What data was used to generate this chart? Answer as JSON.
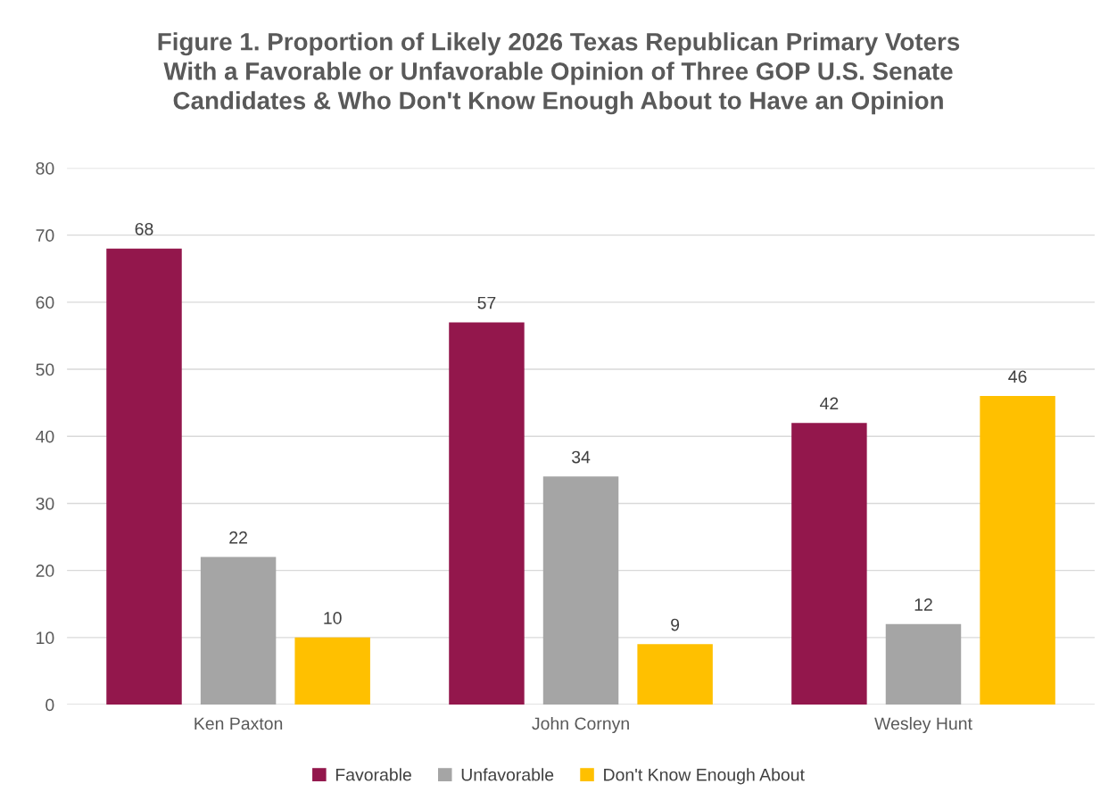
{
  "chart_data": {
    "type": "bar",
    "title": "Figure 1. Proportion of Likely 2026 Texas Republican Primary Voters\nWith a Favorable or Unfavorable Opinion of Three GOP U.S. Senate\nCandidates & Who Don't Know Enough About to Have an Opinion",
    "categories": [
      "Ken Paxton",
      "John Cornyn",
      "Wesley Hunt"
    ],
    "series": [
      {
        "name": "Favorable",
        "color": "#93174c",
        "values": [
          68,
          57,
          42
        ]
      },
      {
        "name": "Unfavorable",
        "color": "#a5a5a5",
        "values": [
          22,
          34,
          12
        ]
      },
      {
        "name": "Don't Know Enough About",
        "color": "#ffc000",
        "values": [
          10,
          9,
          46
        ]
      }
    ],
    "ylim": [
      0,
      80
    ],
    "yticks": [
      0,
      10,
      20,
      30,
      40,
      50,
      60,
      70,
      80
    ],
    "grid": "y",
    "legend": "bottom",
    "data_labels": true
  }
}
